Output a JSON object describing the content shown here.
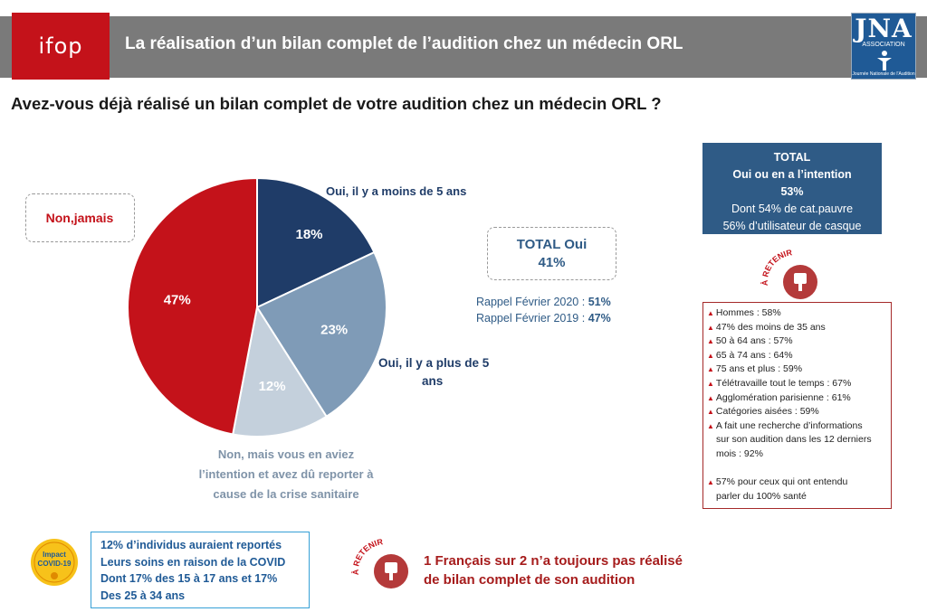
{
  "header": {
    "logo_text": "ifop",
    "title": "La réalisation d’un bilan complet de l’audition chez un médecin ORL",
    "jna_logo_big": "JNA",
    "jna_logo_small": "ASSOCIATION",
    "jna_logo_tiny": "Journée Nationale de l’Audition"
  },
  "question": "Avez-vous déjà réalisé un bilan complet de votre audition chez un médecin ORL ?",
  "chart_data": {
    "type": "pie",
    "slices": [
      {
        "label": "Oui, il y a moins de 5 ans",
        "value": 18,
        "value_label": "18%",
        "color": "#1f3c68"
      },
      {
        "label": "Oui, il y a plus de 5 ans",
        "value": 23,
        "value_label": "23%",
        "color": "#7f9bb7"
      },
      {
        "label": "Non, mais vous en aviez l’intention et avez dû reporter à cause de la crise sanitaire",
        "value": 12,
        "value_label": "12%",
        "color": "#c4d0dc"
      },
      {
        "label": "Non,jamais",
        "value": 47,
        "value_label": "47%",
        "color": "#c4121a"
      }
    ],
    "label_lines": {
      "moins5": [
        "Oui, il y a moins de 5 ans"
      ],
      "plus5": [
        "Oui, il y a plus de 5",
        "ans"
      ],
      "reporter": [
        "Non, mais vous en aviez",
        "l’intention et avez dû reporter à",
        "cause de la crise sanitaire"
      ],
      "jamais": [
        "Non,jamais"
      ]
    },
    "label_colors": {
      "moins5": "#1f3c68",
      "plus5": "#1f3c68",
      "reporter": "#7f93a8",
      "jamais": "#c4121a"
    }
  },
  "total_oui": {
    "line1": "TOTAL Oui",
    "line2": "41%"
  },
  "rappels": [
    {
      "text": "Rappel Février 2020 : ",
      "value": "51%"
    },
    {
      "text": "Rappel Février 2019 : ",
      "value": "47%"
    }
  ],
  "total_box": {
    "line1": "TOTAL",
    "line2": "Oui ou en a l’intention",
    "line3": "53%",
    "line4": "Dont 54% de cat.pauvre",
    "line5": "56% d’utilisateur de casque"
  },
  "retain_stamp": "À RETENIR",
  "retain_items": [
    [
      "Hommes : 58%"
    ],
    [
      "47% des moins de 35 ans"
    ],
    [
      "50 à 64 ans : 57%"
    ],
    [
      "65 à 74 ans : 64%"
    ],
    [
      "75 ans et plus : 59%"
    ],
    [
      "Télétravaille tout le temps : 67%"
    ],
    [
      "Agglomération parisienne : 61%"
    ],
    [
      "Catégories aisées : 59%"
    ],
    [
      "A fait une recherche d’informations",
      "sur son audition dans les 12 derniers",
      "mois : 92%"
    ],
    [
      ""
    ],
    [
      "57% pour ceux qui ont entendu",
      "parler du 100% santé"
    ]
  ],
  "covid_badge": {
    "line1": "Impact",
    "line2": "COVID-19"
  },
  "covid_box": [
    "12% d’individus auraient reportés",
    "Leurs soins en raison de la COVID",
    "Dont 17% des 15 à 17 ans et 17%",
    "Des 25 à 34 ans"
  ],
  "bottom_retain": {
    "stamp": "À RETENIR",
    "line1": "1 Français sur 2 n’a toujours pas réalisé",
    "line2": "de bilan complet de son audition"
  },
  "colors": {
    "header_gray": "#7a7a7a",
    "ifop_red": "#c4121a",
    "dark_blue": "#1f3c68",
    "box_blue": "#2f5b86"
  }
}
